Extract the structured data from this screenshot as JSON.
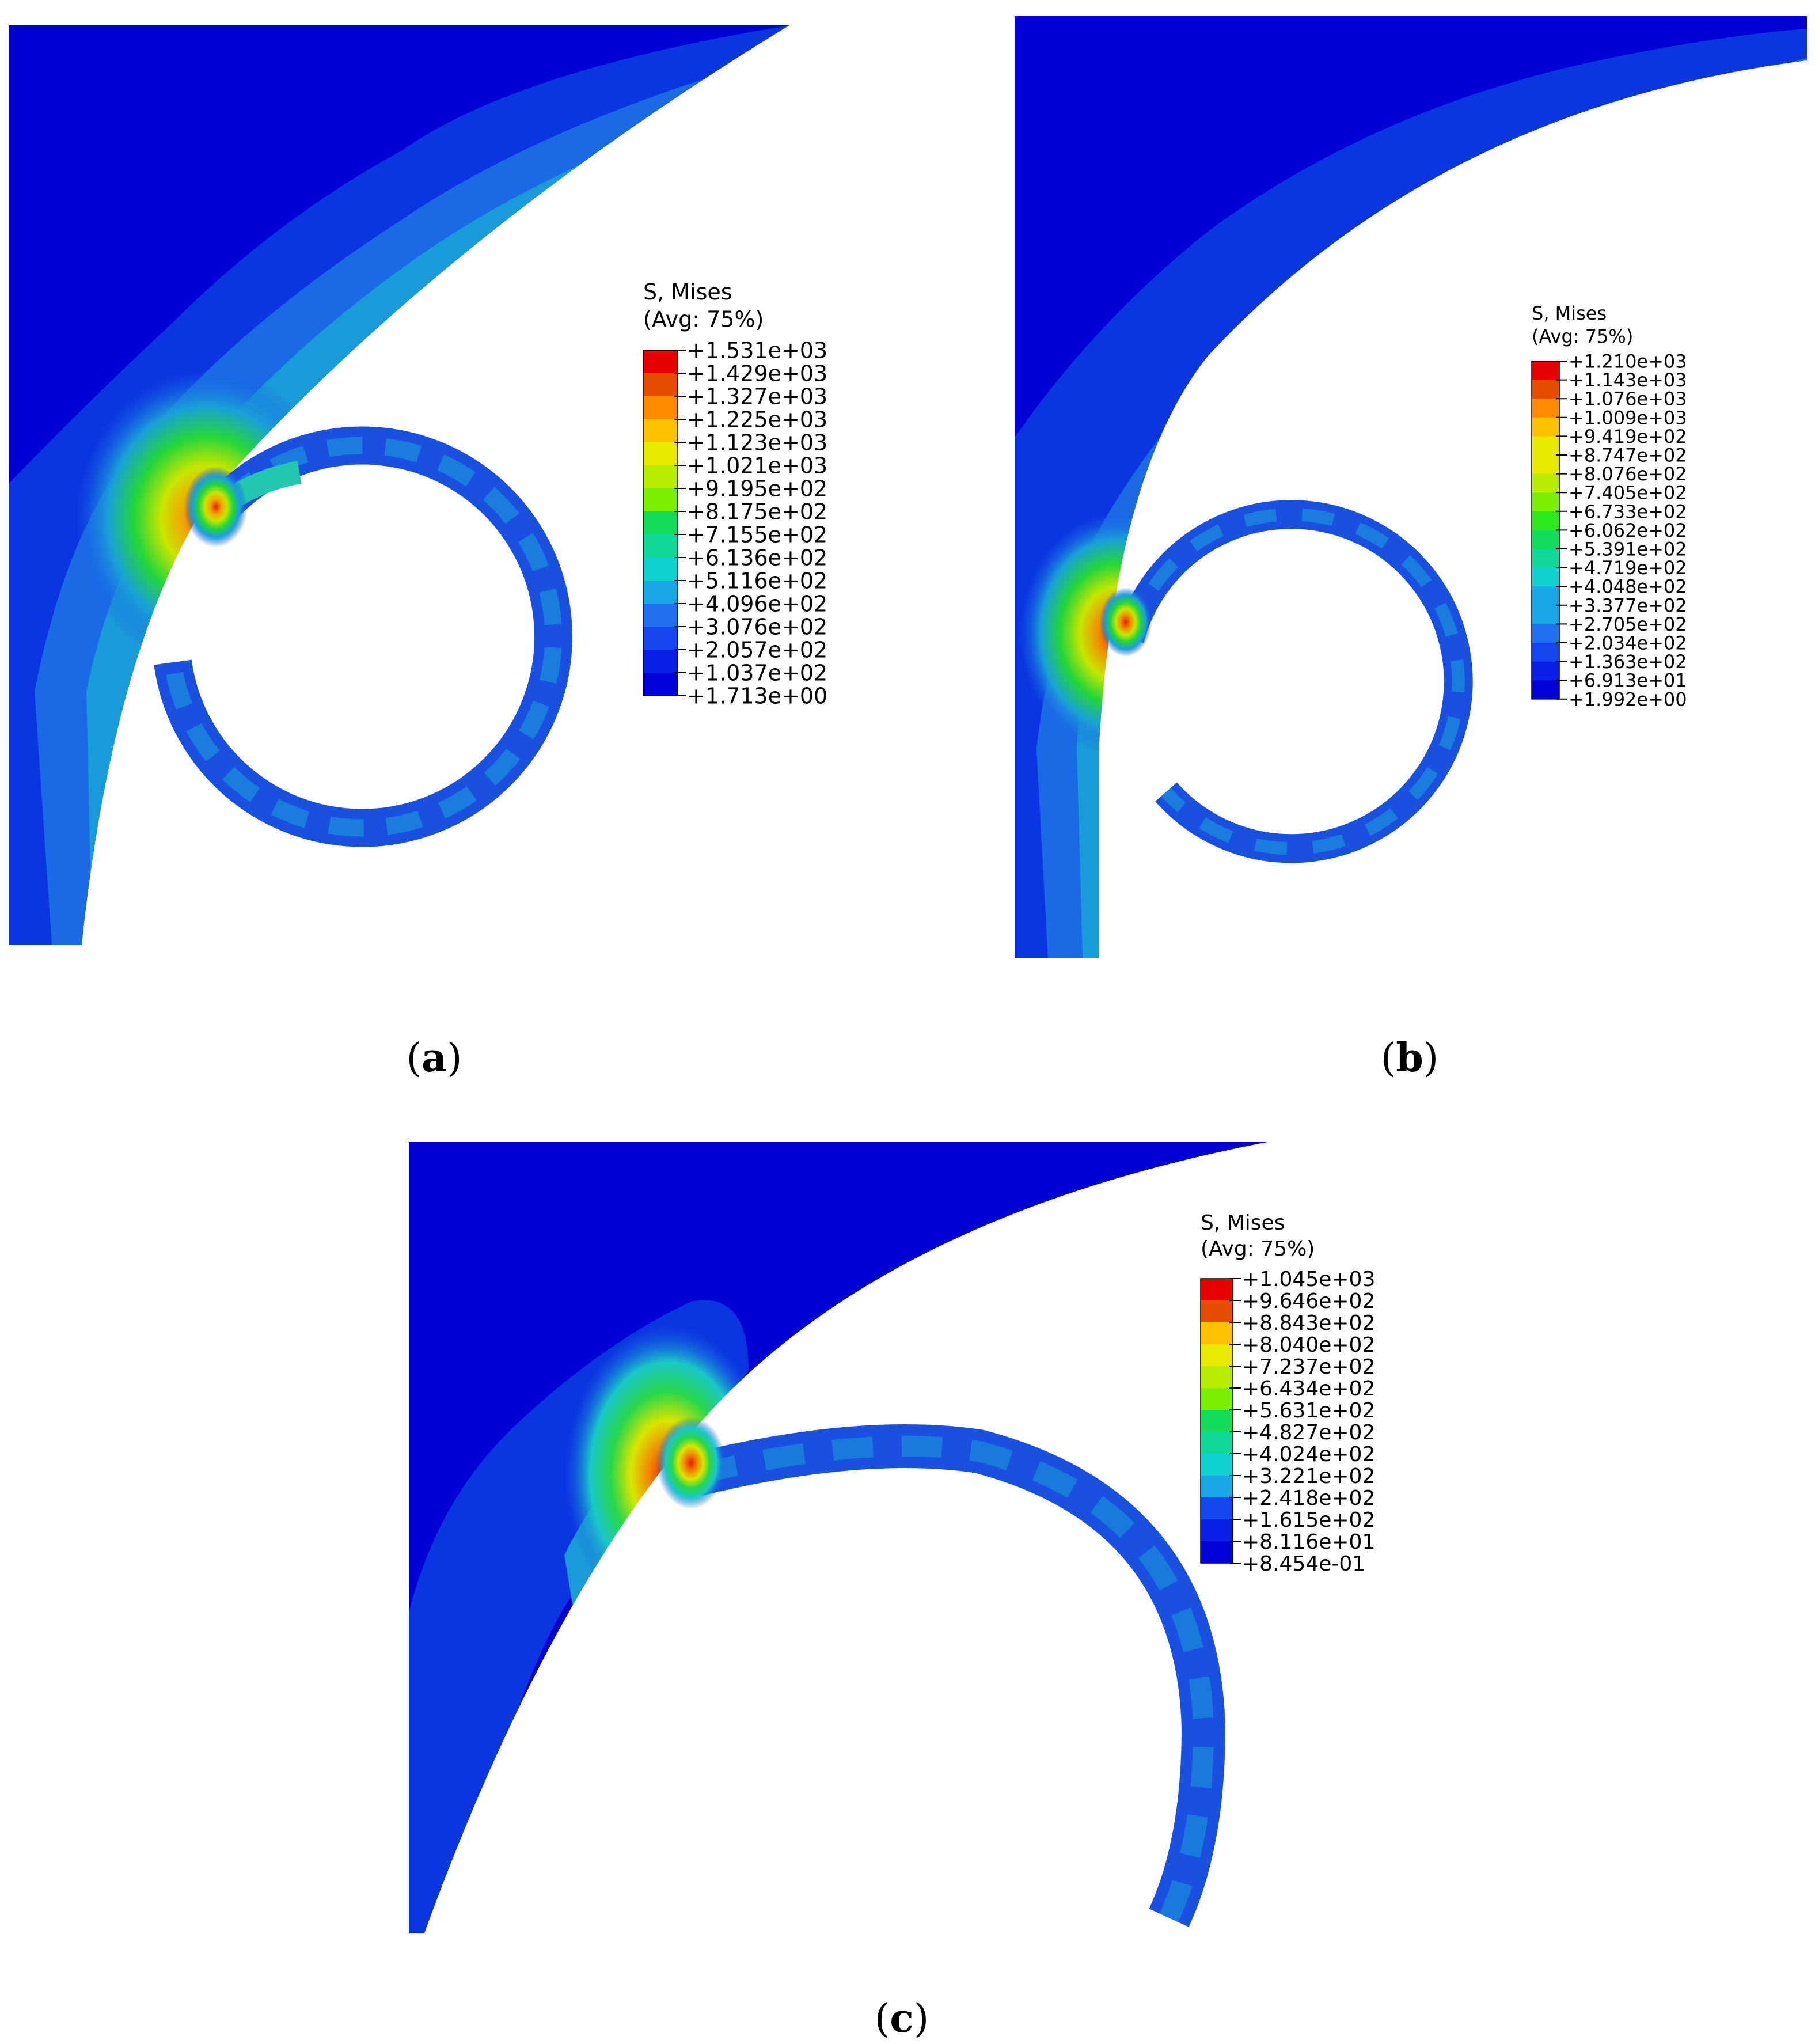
{
  "colors": {
    "background": "#ffffff",
    "stress_low": "#0000d8",
    "stress_mid": "#1edc1e",
    "stress_high": "#e60000",
    "outline": "#000000"
  },
  "panels": [
    {
      "id": "a",
      "caption": "a",
      "legend": {
        "title": "S, Mises",
        "subtitle": "(Avg: 75%)",
        "values": [
          "+1.531e+03",
          "+1.429e+03",
          "+1.327e+03",
          "+1.225e+03",
          "+1.123e+03",
          "+1.021e+03",
          "+9.195e+02",
          "+8.175e+02",
          "+7.155e+02",
          "+6.136e+02",
          "+5.116e+02",
          "+4.096e+02",
          "+3.076e+02",
          "+2.057e+02",
          "+1.037e+02",
          "+1.713e+00"
        ]
      }
    },
    {
      "id": "b",
      "caption": "b",
      "legend": {
        "title": "S, Mises",
        "subtitle": "(Avg: 75%)",
        "values": [
          "+1.210e+03",
          "+1.143e+03",
          "+1.076e+03",
          "+1.009e+03",
          "+9.419e+02",
          "+8.747e+02",
          "+8.076e+02",
          "+7.405e+02",
          "+6.733e+02",
          "+6.062e+02",
          "+5.391e+02",
          "+4.719e+02",
          "+4.048e+02",
          "+3.377e+02",
          "+2.705e+02",
          "+2.034e+02",
          "+1.363e+02",
          "+6.913e+01",
          "+1.992e+00"
        ]
      }
    },
    {
      "id": "c",
      "caption": "c",
      "legend": {
        "title": "S, Mises",
        "subtitle": "(Avg: 75%)",
        "values": [
          "+1.045e+03",
          "+9.646e+02",
          "+8.843e+02",
          "+8.040e+02",
          "+7.237e+02",
          "+6.434e+02",
          "+5.631e+02",
          "+4.827e+02",
          "+4.024e+02",
          "+3.221e+02",
          "+2.418e+02",
          "+1.615e+02",
          "+8.116e+01",
          "+8.454e-01"
        ]
      }
    }
  ]
}
